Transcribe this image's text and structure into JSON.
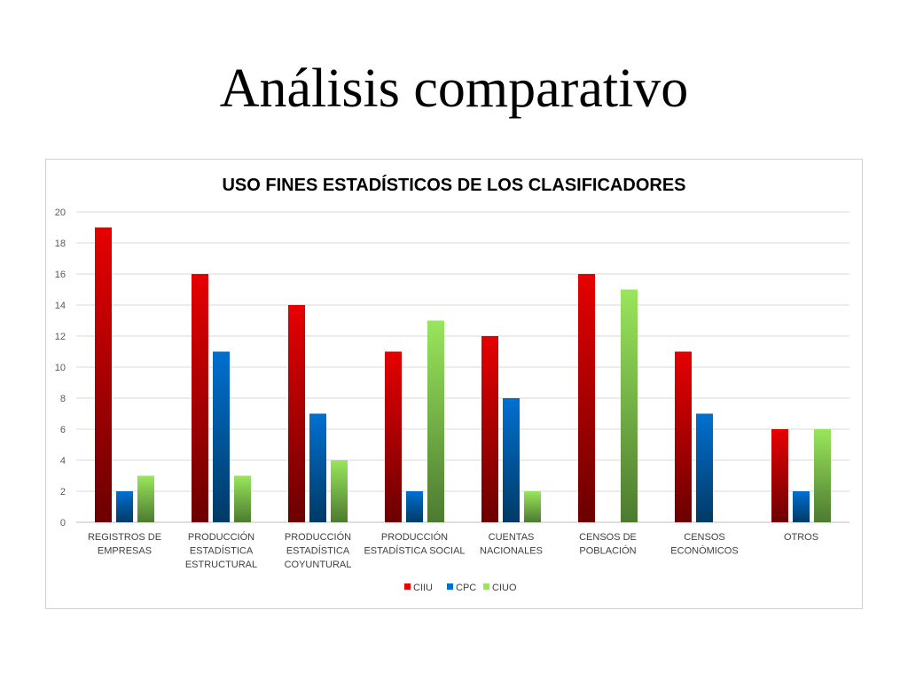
{
  "slide": {
    "title": "Análisis comparativo"
  },
  "chart_data": {
    "type": "bar",
    "title": "USO FINES ESTADÍSTICOS DE LOS CLASIFICADORES",
    "xlabel": "",
    "ylabel": "",
    "ylim": [
      0,
      20
    ],
    "yticks": [
      0,
      2,
      4,
      6,
      8,
      10,
      12,
      14,
      16,
      18,
      20
    ],
    "grid": true,
    "legend_position": "bottom",
    "categories": [
      [
        "REGISTROS DE",
        "EMPRESAS"
      ],
      [
        "PRODUCCIÓN",
        "ESTADÍSTICA",
        "ESTRUCTURAL"
      ],
      [
        "PRODUCCIÓN",
        "ESTADÍSTICA",
        "COYUNTURAL"
      ],
      [
        "PRODUCCIÓN",
        "ESTADÍSTICA SOCIAL"
      ],
      [
        "CUENTAS",
        "NACIONALES"
      ],
      [
        "CENSOS DE",
        "POBLACIÓN"
      ],
      [
        "CENSOS",
        "ECONÓMICOS"
      ],
      [
        "OTROS"
      ]
    ],
    "series": [
      {
        "name": "CIIU",
        "values": [
          19,
          16,
          14,
          11,
          12,
          16,
          11,
          6
        ],
        "color_top": "#e60000",
        "color_bottom": "#6b0000"
      },
      {
        "name": "CPC",
        "values": [
          2,
          11,
          7,
          2,
          8,
          0,
          7,
          2
        ],
        "color_top": "#0070d0",
        "color_bottom": "#003a66"
      },
      {
        "name": "CIUO",
        "values": [
          3,
          3,
          4,
          13,
          2,
          15,
          0,
          6
        ],
        "color_top": "#99e65c",
        "color_bottom": "#4d7a30"
      }
    ]
  }
}
